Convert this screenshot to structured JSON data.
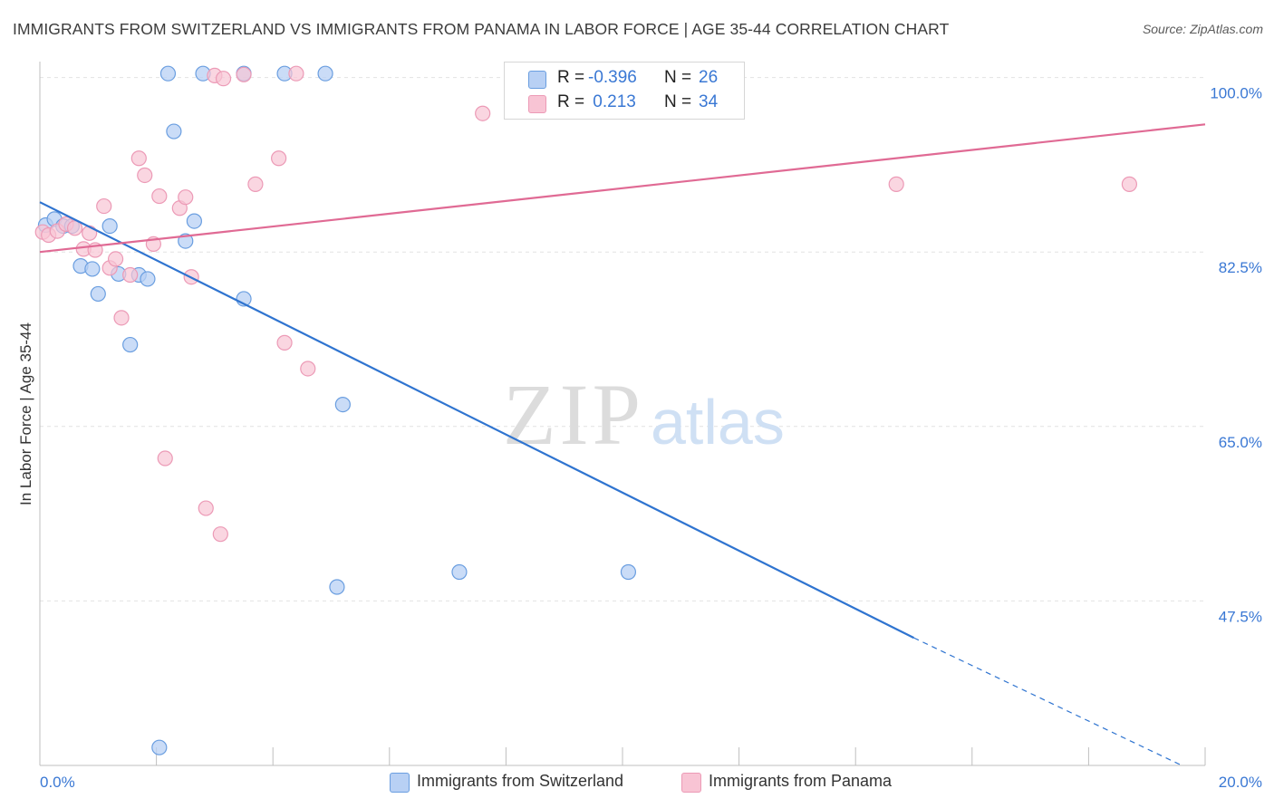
{
  "title": "IMMIGRANTS FROM SWITZERLAND VS IMMIGRANTS FROM PANAMA IN LABOR FORCE | AGE 35-44 CORRELATION CHART",
  "source": "Source: ZipAtlas.com",
  "watermark": {
    "zip": "ZIP",
    "atlas": "atlas"
  },
  "legend": {
    "rows": [
      {
        "r_label": "R =",
        "r_value": "-0.396",
        "n_label": "N =",
        "n_value": "26"
      },
      {
        "r_label": "R =",
        "r_value": " 0.213",
        "n_label": "N =",
        "n_value": "34"
      }
    ]
  },
  "colors": {
    "switzerland_fill": "#b8d0f4",
    "switzerland_stroke": "#6a9ee0",
    "switzerland_line": "#2f74d0",
    "panama_fill": "#f8c4d4",
    "panama_stroke": "#ec9ab6",
    "panama_line": "#e06a94",
    "axis_label": "#3a78d4",
    "grid": "#e2e2e2"
  },
  "chart_data": {
    "type": "scatter",
    "title": "IMMIGRANTS FROM SWITZERLAND VS IMMIGRANTS FROM PANAMA IN LABOR FORCE | AGE 35-44 CORRELATION CHART",
    "xlabel": "",
    "ylabel": "In Labor Force | Age 35-44",
    "xlim": [
      0,
      20
    ],
    "ylim": [
      31,
      101.6
    ],
    "x_tick_labels": [
      "0.0%",
      "20.0%"
    ],
    "y_ticks": [
      100,
      82.5,
      65,
      47.5
    ],
    "y_tick_labels": [
      "100.0%",
      "82.5%",
      "65.0%",
      "47.5%"
    ],
    "series": [
      {
        "name": "Immigrants from Switzerland",
        "r": -0.396,
        "n": 26,
        "points": [
          [
            0.1,
            85.2
          ],
          [
            0.25,
            85.8
          ],
          [
            0.4,
            85.1
          ],
          [
            0.55,
            85.1
          ],
          [
            0.7,
            81.1
          ],
          [
            0.9,
            80.8
          ],
          [
            1.0,
            78.3
          ],
          [
            1.2,
            85.1
          ],
          [
            1.35,
            80.3
          ],
          [
            1.55,
            73.2
          ],
          [
            1.7,
            80.2
          ],
          [
            1.85,
            79.8
          ],
          [
            2.2,
            100.4
          ],
          [
            2.3,
            94.6
          ],
          [
            2.5,
            83.6
          ],
          [
            2.65,
            85.6
          ],
          [
            2.8,
            100.4
          ],
          [
            3.5,
            100.4
          ],
          [
            3.5,
            77.8
          ],
          [
            4.2,
            100.4
          ],
          [
            4.9,
            100.4
          ],
          [
            5.2,
            67.2
          ],
          [
            5.1,
            48.9
          ],
          [
            7.2,
            50.4
          ],
          [
            10.1,
            50.4
          ],
          [
            2.05,
            32.8
          ]
        ],
        "trend": {
          "x0": 0,
          "y0": 87.5,
          "x1": 15.0,
          "y1": 43.8,
          "dashed_to_x": 19.6,
          "dashed_to_y": 31.0
        }
      },
      {
        "name": "Immigrants from Panama",
        "r": 0.213,
        "n": 34,
        "points": [
          [
            0.05,
            84.5
          ],
          [
            0.15,
            84.2
          ],
          [
            0.3,
            84.6
          ],
          [
            0.45,
            85.3
          ],
          [
            0.6,
            84.9
          ],
          [
            0.75,
            82.8
          ],
          [
            0.85,
            84.4
          ],
          [
            0.95,
            82.7
          ],
          [
            1.1,
            87.1
          ],
          [
            1.2,
            80.9
          ],
          [
            1.3,
            81.8
          ],
          [
            1.4,
            75.9
          ],
          [
            1.55,
            80.2
          ],
          [
            1.7,
            91.9
          ],
          [
            1.8,
            90.2
          ],
          [
            1.95,
            83.3
          ],
          [
            2.05,
            88.1
          ],
          [
            2.15,
            61.8
          ],
          [
            2.4,
            86.9
          ],
          [
            2.5,
            88.0
          ],
          [
            2.6,
            80.0
          ],
          [
            2.85,
            56.8
          ],
          [
            3.0,
            100.2
          ],
          [
            3.15,
            99.9
          ],
          [
            3.1,
            54.2
          ],
          [
            3.5,
            100.3
          ],
          [
            3.7,
            89.3
          ],
          [
            4.1,
            91.9
          ],
          [
            4.4,
            100.4
          ],
          [
            4.2,
            73.4
          ],
          [
            4.6,
            70.8
          ],
          [
            7.6,
            96.4
          ],
          [
            14.7,
            89.3
          ],
          [
            18.7,
            89.3
          ]
        ],
        "trend": {
          "x0": 0,
          "y0": 82.5,
          "x1": 20,
          "y1": 95.3
        }
      }
    ]
  }
}
